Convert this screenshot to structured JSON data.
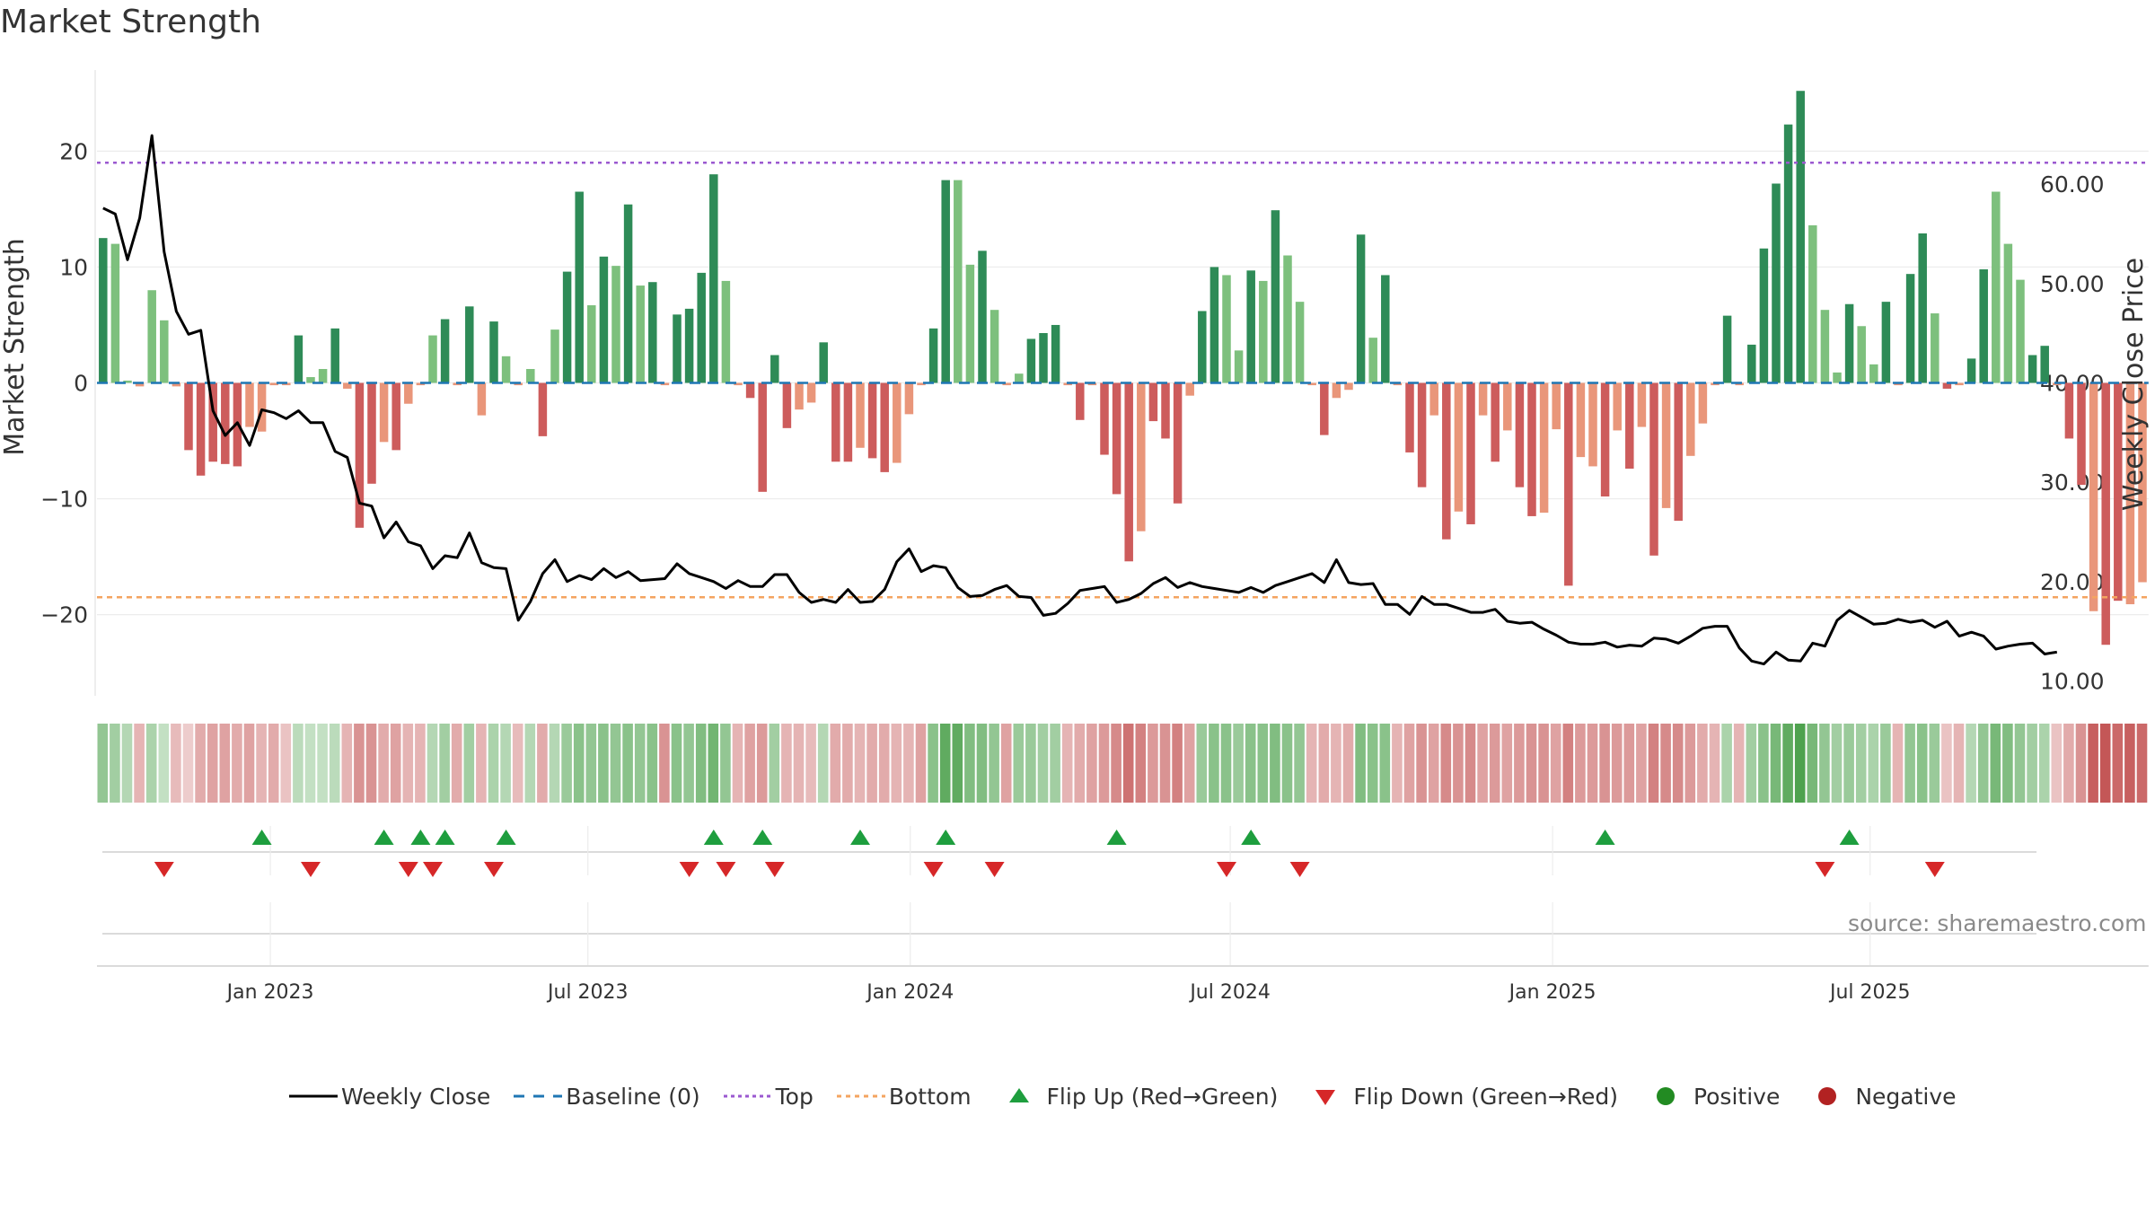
{
  "title": "Market Strength",
  "source": "source: sharemaestro.com",
  "colors": {
    "pos_dark": "#2e8b57",
    "pos_light": "#7dc07d",
    "neg_dark": "#cd5c5c",
    "neg_light": "#e9967a",
    "line": "#000000",
    "baseline": "#1f77b4",
    "top": "#9b59d0",
    "bottom": "#f4a460",
    "flip_up": "#1e9e3e",
    "flip_down": "#d62728",
    "positive": "#228b22",
    "negative": "#b22222"
  },
  "legend": [
    {
      "key": "close",
      "label": "Weekly Close"
    },
    {
      "key": "baseline",
      "label": "Baseline (0)"
    },
    {
      "key": "top",
      "label": "Top"
    },
    {
      "key": "bottom",
      "label": "Bottom"
    },
    {
      "key": "flip_up",
      "label": "Flip Up (Red→Green)"
    },
    {
      "key": "flip_down",
      "label": "Flip Down (Green→Red)"
    },
    {
      "key": "positive",
      "label": "Positive"
    },
    {
      "key": "negative",
      "label": "Negative"
    }
  ],
  "chart_data": {
    "type": "bar",
    "title": "Market Strength",
    "ylabel": "Market Strength",
    "y2label": "Weekly Close Price",
    "ylim": [
      -27,
      27
    ],
    "y2lim": [
      8.5,
      71.5
    ],
    "yticks": [
      -20,
      -10,
      0,
      10,
      20
    ],
    "yticklabels": [
      "−20",
      "−10",
      "0",
      "10",
      "20"
    ],
    "y2ticks": [
      10,
      20,
      30,
      40,
      50,
      60
    ],
    "y2ticklabels": [
      "10.00",
      "20.00",
      "30.00",
      "40.00",
      "50.00",
      "60.00"
    ],
    "top_level": 19.0,
    "bottom_level": -18.5,
    "grid": true,
    "legend_position": "bottom",
    "xticks": [
      {
        "label": "Jan 2023",
        "week": 14.2
      },
      {
        "label": "Jul 2023",
        "week": 40.2
      },
      {
        "label": "Jan 2024",
        "week": 66.6
      },
      {
        "label": "Jul 2024",
        "week": 92.8
      },
      {
        "label": "Jan 2025",
        "week": 119.2
      },
      {
        "label": "Jul 2025",
        "week": 145.2
      }
    ],
    "strength": [
      12.5,
      12.0,
      0.2,
      -0.3,
      8.0,
      5.4,
      -0.3,
      -5.8,
      -8.0,
      -6.8,
      -7.0,
      -7.2,
      -3.8,
      -4.2,
      -0.2,
      -0.2,
      4.1,
      0.5,
      1.2,
      4.7,
      -0.5,
      -12.5,
      -8.7,
      -5.1,
      -5.8,
      -1.8,
      -0.2,
      4.1,
      5.5,
      -0.2,
      6.6,
      -2.8,
      5.3,
      2.3,
      -0.2,
      1.2,
      -4.6,
      4.6,
      9.6,
      16.5,
      6.7,
      10.9,
      10.1,
      15.4,
      8.4,
      8.7,
      -0.2,
      5.9,
      6.4,
      9.5,
      18.0,
      8.8,
      -0.2,
      -1.3,
      -9.4,
      2.4,
      -3.9,
      -2.3,
      -1.7,
      3.5,
      -6.8,
      -6.8,
      -5.6,
      -6.5,
      -7.7,
      -6.9,
      -2.7,
      -0.2,
      4.7,
      17.5,
      17.5,
      10.2,
      11.4,
      6.3,
      -0.2,
      0.8,
      3.8,
      4.3,
      5.0,
      -0.2,
      -3.2,
      -0.2,
      -6.2,
      -9.6,
      -15.4,
      -12.8,
      -3.3,
      -4.8,
      -10.4,
      -1.1,
      6.2,
      10.0,
      9.3,
      2.8,
      9.7,
      8.8,
      14.9,
      11.0,
      7.0,
      -0.2,
      -4.5,
      -1.3,
      -0.6,
      12.8,
      3.9,
      9.3,
      -0.2,
      -6.0,
      -9.0,
      -2.8,
      -13.5,
      -11.1,
      -12.2,
      -2.8,
      -6.8,
      -4.1,
      -9.0,
      -11.5,
      -11.2,
      -4.0,
      -17.5,
      -6.4,
      -7.2,
      -9.8,
      -4.1,
      -7.4,
      -3.8,
      -14.9,
      -10.8,
      -11.9,
      -6.3,
      -3.5,
      -0.2,
      5.8,
      -0.2,
      3.3,
      11.6,
      17.2,
      22.3,
      25.2,
      13.6,
      6.3,
      0.9,
      6.8,
      4.9,
      1.6,
      7.0,
      -0.2,
      9.4,
      12.9,
      6.0,
      -0.5,
      -0.2,
      2.1,
      9.8,
      16.5,
      12.0,
      8.9,
      2.4,
      3.2,
      -0.2,
      -4.8,
      -8.8,
      -19.7,
      -22.6,
      -18.8,
      -19.1,
      -17.2
    ],
    "shade": [
      1,
      0,
      0,
      0,
      0,
      0,
      0,
      1,
      1,
      1,
      1,
      1,
      0,
      0,
      0,
      0,
      1,
      0,
      0,
      1,
      0,
      1,
      1,
      0,
      1,
      0,
      0,
      0,
      1,
      0,
      1,
      0,
      1,
      0,
      0,
      0,
      1,
      0,
      1,
      1,
      0,
      1,
      0,
      1,
      0,
      1,
      0,
      1,
      1,
      1,
      1,
      0,
      0,
      1,
      1,
      1,
      1,
      0,
      0,
      1,
      1,
      1,
      0,
      1,
      1,
      0,
      0,
      0,
      1,
      1,
      0,
      0,
      1,
      0,
      0,
      0,
      1,
      1,
      1,
      0,
      1,
      0,
      1,
      1,
      1,
      0,
      1,
      1,
      1,
      0,
      1,
      1,
      0,
      0,
      1,
      0,
      1,
      0,
      0,
      0,
      1,
      0,
      0,
      1,
      0,
      1,
      0,
      1,
      1,
      0,
      1,
      0,
      1,
      0,
      1,
      0,
      1,
      1,
      0,
      0,
      1,
      0,
      0,
      1,
      0,
      1,
      0,
      1,
      0,
      1,
      0,
      0,
      0,
      1,
      0,
      1,
      1,
      1,
      1,
      1,
      0,
      0,
      0,
      1,
      0,
      0,
      1,
      0,
      1,
      1,
      0,
      1,
      0,
      1,
      1,
      0,
      0,
      0,
      1,
      1,
      0,
      1,
      1,
      0,
      1,
      1,
      0,
      0
    ],
    "close": [
      57.6,
      57.0,
      52.4,
      56.6,
      64.9,
      53.2,
      47.2,
      44.9,
      45.3,
      37.2,
      34.7,
      36.0,
      33.7,
      37.3,
      37.0,
      36.4,
      37.2,
      36.0,
      36.0,
      33.1,
      32.5,
      27.9,
      27.6,
      24.4,
      26.0,
      24.0,
      23.6,
      21.3,
      22.6,
      22.4,
      24.9,
      21.9,
      21.4,
      21.3,
      16.1,
      18.0,
      20.8,
      22.2,
      20.0,
      20.6,
      20.2,
      21.3,
      20.4,
      21.0,
      20.1,
      20.2,
      20.3,
      21.8,
      20.8,
      20.4,
      20.0,
      19.3,
      20.1,
      19.5,
      19.5,
      20.7,
      20.7,
      18.9,
      17.9,
      18.2,
      17.9,
      19.2,
      17.9,
      18.0,
      19.2,
      22.0,
      23.3,
      21.0,
      21.6,
      21.4,
      19.4,
      18.5,
      18.6,
      19.2,
      19.6,
      18.5,
      18.4,
      16.6,
      16.8,
      17.8,
      19.1,
      19.3,
      19.5,
      17.9,
      18.2,
      18.8,
      19.8,
      20.4,
      19.4,
      19.9,
      19.5,
      19.3,
      19.1,
      18.9,
      19.4,
      18.9,
      19.6,
      20.0,
      20.4,
      20.8,
      19.9,
      22.2,
      19.9,
      19.7,
      19.8,
      17.7,
      17.7,
      16.7,
      18.5,
      17.7,
      17.7,
      17.3,
      16.9,
      16.9,
      17.2,
      16.0,
      15.8,
      15.9,
      15.2,
      14.6,
      13.9,
      13.7,
      13.7,
      13.9,
      13.4,
      13.6,
      13.5,
      14.3,
      14.2,
      13.8,
      14.5,
      15.3,
      15.5,
      15.5,
      13.3,
      12.0,
      11.7,
      12.9,
      12.1,
      12.0,
      13.8,
      13.5,
      16.1,
      17.1,
      16.4,
      15.7,
      15.8,
      16.2,
      15.9,
      16.1,
      15.4,
      16.0,
      14.5,
      14.9,
      14.5,
      13.2,
      13.5,
      13.7,
      13.8,
      12.7,
      12.9
    ],
    "heat": [
      0.5,
      0.4,
      0.3,
      0.3,
      0.35,
      0.2,
      0.25,
      0.15,
      0.35,
      0.4,
      0.4,
      0.35,
      0.4,
      0.3,
      0.35,
      0.2,
      0.25,
      0.2,
      0.2,
      0.25,
      0.3,
      0.5,
      0.5,
      0.35,
      0.4,
      0.3,
      0.3,
      0.3,
      0.4,
      0.35,
      0.4,
      0.3,
      0.35,
      0.3,
      0.25,
      0.3,
      0.35,
      0.3,
      0.45,
      0.55,
      0.5,
      0.55,
      0.5,
      0.55,
      0.5,
      0.55,
      0.5,
      0.55,
      0.5,
      0.6,
      0.7,
      0.5,
      0.3,
      0.4,
      0.45,
      0.4,
      0.3,
      0.3,
      0.25,
      0.3,
      0.35,
      0.35,
      0.3,
      0.35,
      0.35,
      0.3,
      0.3,
      0.4,
      0.55,
      0.8,
      0.8,
      0.6,
      0.6,
      0.5,
      0.4,
      0.45,
      0.45,
      0.4,
      0.4,
      0.3,
      0.35,
      0.4,
      0.45,
      0.55,
      0.7,
      0.6,
      0.45,
      0.5,
      0.6,
      0.4,
      0.45,
      0.55,
      0.55,
      0.45,
      0.55,
      0.55,
      0.6,
      0.55,
      0.5,
      0.3,
      0.35,
      0.3,
      0.35,
      0.6,
      0.55,
      0.55,
      0.3,
      0.4,
      0.5,
      0.4,
      0.55,
      0.5,
      0.55,
      0.4,
      0.45,
      0.4,
      0.45,
      0.5,
      0.5,
      0.4,
      0.6,
      0.45,
      0.45,
      0.5,
      0.45,
      0.45,
      0.4,
      0.6,
      0.55,
      0.55,
      0.45,
      0.35,
      0.3,
      0.35,
      0.3,
      0.4,
      0.55,
      0.65,
      0.8,
      0.9,
      0.65,
      0.5,
      0.4,
      0.45,
      0.4,
      0.35,
      0.45,
      0.3,
      0.5,
      0.55,
      0.45,
      0.2,
      0.3,
      0.3,
      0.5,
      0.65,
      0.6,
      0.5,
      0.4,
      0.35,
      0.2,
      0.35,
      0.5,
      0.8,
      0.85,
      0.75,
      0.8,
      0.75
    ],
    "flip_up_weeks": [
      13,
      23,
      26,
      28,
      33,
      50,
      54,
      62,
      69,
      83,
      94,
      123,
      143
    ],
    "flip_down_weeks": [
      5,
      17,
      25,
      27,
      32,
      48,
      51,
      55,
      68,
      73,
      92,
      98,
      141,
      150
    ]
  }
}
